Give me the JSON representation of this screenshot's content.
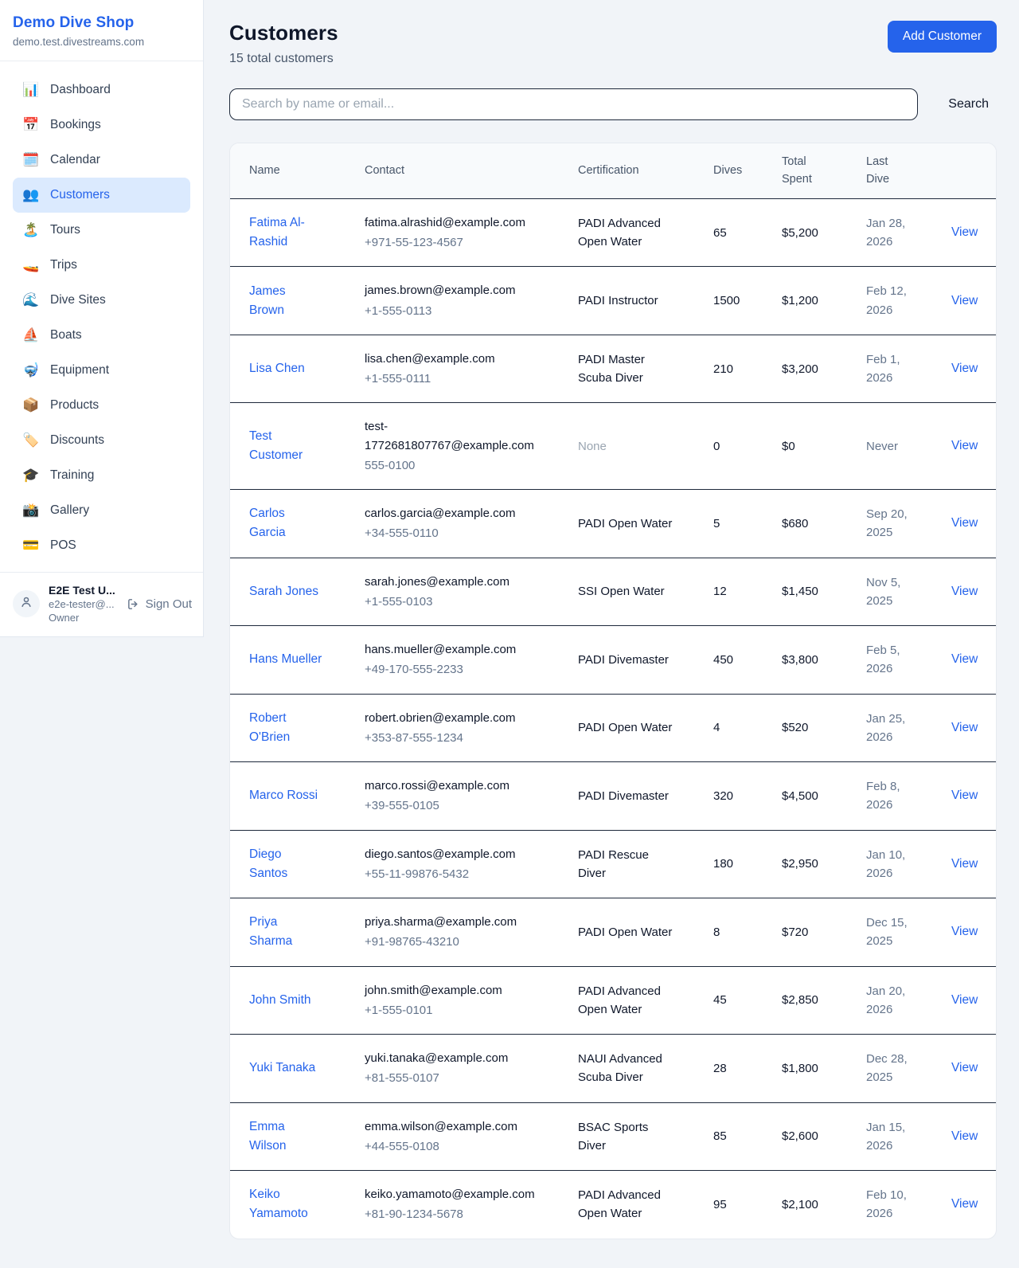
{
  "sidebar": {
    "shop_name": "Demo Dive Shop",
    "shop_domain": "demo.test.divestreams.com",
    "items": [
      {
        "label": "Dashboard",
        "icon": "📊",
        "icon_name": "bar-chart-icon",
        "active": false
      },
      {
        "label": "Bookings",
        "icon": "📅",
        "icon_name": "calendar-date-icon",
        "active": false
      },
      {
        "label": "Calendar",
        "icon": "🗓️",
        "icon_name": "spiral-calendar-icon",
        "active": false
      },
      {
        "label": "Customers",
        "icon": "👥",
        "icon_name": "people-icon",
        "active": true
      },
      {
        "label": "Tours",
        "icon": "🏝️",
        "icon_name": "island-icon",
        "active": false
      },
      {
        "label": "Trips",
        "icon": "🚤",
        "icon_name": "speedboat-icon",
        "active": false
      },
      {
        "label": "Dive Sites",
        "icon": "🌊",
        "icon_name": "wave-icon",
        "active": false
      },
      {
        "label": "Boats",
        "icon": "⛵",
        "icon_name": "sailboat-icon",
        "active": false
      },
      {
        "label": "Equipment",
        "icon": "🤿",
        "icon_name": "diving-mask-icon",
        "active": false
      },
      {
        "label": "Products",
        "icon": "📦",
        "icon_name": "package-icon",
        "active": false
      },
      {
        "label": "Discounts",
        "icon": "🏷️",
        "icon_name": "tag-icon",
        "active": false
      },
      {
        "label": "Training",
        "icon": "🎓",
        "icon_name": "graduation-cap-icon",
        "active": false
      },
      {
        "label": "Gallery",
        "icon": "📸",
        "icon_name": "camera-icon",
        "active": false
      },
      {
        "label": "POS",
        "icon": "💳",
        "icon_name": "credit-card-icon",
        "active": false
      }
    ],
    "user": {
      "name": "E2E Test U...",
      "email": "e2e-tester@...",
      "role": "Owner"
    },
    "sign_out_label": "Sign Out"
  },
  "header": {
    "title": "Customers",
    "subtitle": "15 total customers",
    "add_button_label": "Add Customer"
  },
  "search": {
    "placeholder": "Search by name or email...",
    "value": "",
    "button_label": "Search"
  },
  "table": {
    "columns": [
      "Name",
      "Contact",
      "Certification",
      "Dives",
      "Total Spent",
      "Last Dive",
      ""
    ],
    "view_label": "View",
    "rows": [
      {
        "name": "Fatima Al-Rashid",
        "email": "fatima.alrashid@example.com",
        "phone": "+971-55-123-4567",
        "certification": "PADI Advanced Open Water",
        "dives": "65",
        "total_spent": "$5,200",
        "last_dive": "Jan 28, 2026"
      },
      {
        "name": "James Brown",
        "email": "james.brown@example.com",
        "phone": "+1-555-0113",
        "certification": "PADI Instructor",
        "dives": "1500",
        "total_spent": "$1,200",
        "last_dive": "Feb 12, 2026"
      },
      {
        "name": "Lisa Chen",
        "email": "lisa.chen@example.com",
        "phone": "+1-555-0111",
        "certification": "PADI Master Scuba Diver",
        "dives": "210",
        "total_spent": "$3,200",
        "last_dive": "Feb 1, 2026"
      },
      {
        "name": "Test Customer",
        "email": "test-1772681807767@example.com",
        "phone": "555-0100",
        "certification": "None",
        "dives": "0",
        "total_spent": "$0",
        "last_dive": "Never"
      },
      {
        "name": "Carlos Garcia",
        "email": "carlos.garcia@example.com",
        "phone": "+34-555-0110",
        "certification": "PADI Open Water",
        "dives": "5",
        "total_spent": "$680",
        "last_dive": "Sep 20, 2025"
      },
      {
        "name": "Sarah Jones",
        "email": "sarah.jones@example.com",
        "phone": "+1-555-0103",
        "certification": "SSI Open Water",
        "dives": "12",
        "total_spent": "$1,450",
        "last_dive": "Nov 5, 2025"
      },
      {
        "name": "Hans Mueller",
        "email": "hans.mueller@example.com",
        "phone": "+49-170-555-2233",
        "certification": "PADI Divemaster",
        "dives": "450",
        "total_spent": "$3,800",
        "last_dive": "Feb 5, 2026"
      },
      {
        "name": "Robert O'Brien",
        "email": "robert.obrien@example.com",
        "phone": "+353-87-555-1234",
        "certification": "PADI Open Water",
        "dives": "4",
        "total_spent": "$520",
        "last_dive": "Jan 25, 2026"
      },
      {
        "name": "Marco Rossi",
        "email": "marco.rossi@example.com",
        "phone": "+39-555-0105",
        "certification": "PADI Divemaster",
        "dives": "320",
        "total_spent": "$4,500",
        "last_dive": "Feb 8, 2026"
      },
      {
        "name": "Diego Santos",
        "email": "diego.santos@example.com",
        "phone": "+55-11-99876-5432",
        "certification": "PADI Rescue Diver",
        "dives": "180",
        "total_spent": "$2,950",
        "last_dive": "Jan 10, 2026"
      },
      {
        "name": "Priya Sharma",
        "email": "priya.sharma@example.com",
        "phone": "+91-98765-43210",
        "certification": "PADI Open Water",
        "dives": "8",
        "total_spent": "$720",
        "last_dive": "Dec 15, 2025"
      },
      {
        "name": "John Smith",
        "email": "john.smith@example.com",
        "phone": "+1-555-0101",
        "certification": "PADI Advanced Open Water",
        "dives": "45",
        "total_spent": "$2,850",
        "last_dive": "Jan 20, 2026"
      },
      {
        "name": "Yuki Tanaka",
        "email": "yuki.tanaka@example.com",
        "phone": "+81-555-0107",
        "certification": "NAUI Advanced Scuba Diver",
        "dives": "28",
        "total_spent": "$1,800",
        "last_dive": "Dec 28, 2025"
      },
      {
        "name": "Emma Wilson",
        "email": "emma.wilson@example.com",
        "phone": "+44-555-0108",
        "certification": "BSAC Sports Diver",
        "dives": "85",
        "total_spent": "$2,600",
        "last_dive": "Jan 15, 2026"
      },
      {
        "name": "Keiko Yamamoto",
        "email": "keiko.yamamoto@example.com",
        "phone": "+81-90-1234-5678",
        "certification": "PADI Advanced Open Water",
        "dives": "95",
        "total_spent": "$2,100",
        "last_dive": "Feb 10, 2026"
      }
    ]
  },
  "colors": {
    "accent": "#2563eb",
    "active_item_bg": "#dbeafe",
    "row_border": "#1e293b",
    "muted_text": "#64748b",
    "page_bg": "#f1f4f8"
  }
}
